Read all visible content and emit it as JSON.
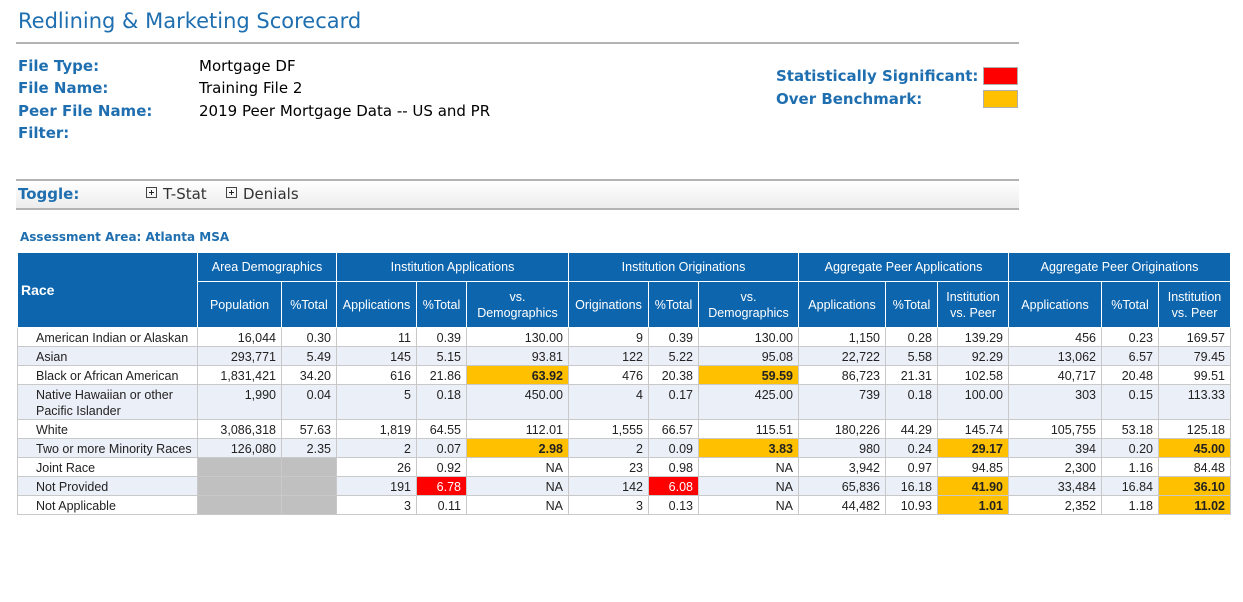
{
  "title": "Redlining & Marketing Scorecard",
  "meta": [
    {
      "label": "File Type:",
      "value": "Mortgage DF"
    },
    {
      "label": "File Name:",
      "value": "Training File 2"
    },
    {
      "label": "Peer File Name:",
      "value": "2019 Peer Mortgage Data -- US and PR"
    },
    {
      "label": "Filter:",
      "value": ""
    }
  ],
  "legend": [
    {
      "label": "Statistically Significant:",
      "color": "#ff0000"
    },
    {
      "label": "Over Benchmark:",
      "color": "#ffc000"
    }
  ],
  "toggle": {
    "label": "Toggle:",
    "items": [
      "T-Stat",
      "Denials"
    ]
  },
  "assessment_area": "Assessment Area: Atlanta MSA",
  "table": {
    "race_header": "Race",
    "groups": [
      "Area Demographics",
      "Institution Applications",
      "Institution Originations",
      "Aggregate Peer Applications",
      "Aggregate Peer Originations"
    ],
    "columns": [
      "Population",
      "%Total",
      "Applications",
      "%Total",
      "vs. Demographics",
      "Originations",
      "%Total",
      "vs. Demographics",
      "Applications",
      "%Total",
      "Institution vs. Peer",
      "Applications",
      "%Total",
      "Institution vs. Peer"
    ],
    "rows": [
      {
        "race": "American Indian or Alaskan",
        "cells": [
          "16,044",
          "0.30",
          "11",
          "0.39",
          "130.00",
          "9",
          "0.39",
          "130.00",
          "1,150",
          "0.28",
          "139.29",
          "456",
          "0.23",
          "169.57"
        ],
        "flags": {}
      },
      {
        "race": "Asian",
        "cells": [
          "293,771",
          "5.49",
          "145",
          "5.15",
          "93.81",
          "122",
          "5.22",
          "95.08",
          "22,722",
          "5.58",
          "92.29",
          "13,062",
          "6.57",
          "79.45"
        ],
        "flags": {}
      },
      {
        "race": "Black or African American",
        "cells": [
          "1,831,421",
          "34.20",
          "616",
          "21.86",
          "63.92",
          "476",
          "20.38",
          "59.59",
          "86,723",
          "21.31",
          "102.58",
          "40,717",
          "20.48",
          "99.51"
        ],
        "flags": {
          "4": "orange",
          "7": "orange"
        }
      },
      {
        "race": "Native Hawaiian or other Pacific Islander",
        "cells": [
          "1,990",
          "0.04",
          "5",
          "0.18",
          "450.00",
          "4",
          "0.17",
          "425.00",
          "739",
          "0.18",
          "100.00",
          "303",
          "0.15",
          "113.33"
        ],
        "flags": {}
      },
      {
        "race": "White",
        "cells": [
          "3,086,318",
          "57.63",
          "1,819",
          "64.55",
          "112.01",
          "1,555",
          "66.57",
          "115.51",
          "180,226",
          "44.29",
          "145.74",
          "105,755",
          "53.18",
          "125.18"
        ],
        "flags": {}
      },
      {
        "race": "Two or more Minority Races",
        "cells": [
          "126,080",
          "2.35",
          "2",
          "0.07",
          "2.98",
          "2",
          "0.09",
          "3.83",
          "980",
          "0.24",
          "29.17",
          "394",
          "0.20",
          "45.00"
        ],
        "flags": {
          "4": "orange",
          "7": "orange",
          "10": "orange",
          "13": "orange"
        }
      },
      {
        "race": "Joint Race",
        "cells": [
          "",
          "",
          "26",
          "0.92",
          "NA",
          "23",
          "0.98",
          "NA",
          "3,942",
          "0.97",
          "94.85",
          "2,300",
          "1.16",
          "84.48"
        ],
        "flags": {
          "0": "gray",
          "1": "gray"
        }
      },
      {
        "race": "Not Provided",
        "cells": [
          "",
          "",
          "191",
          "6.78",
          "NA",
          "142",
          "6.08",
          "NA",
          "65,836",
          "16.18",
          "41.90",
          "33,484",
          "16.84",
          "36.10"
        ],
        "flags": {
          "0": "gray",
          "1": "gray",
          "3": "red",
          "6": "red",
          "10": "orange",
          "13": "orange"
        }
      },
      {
        "race": "Not Applicable",
        "cells": [
          "",
          "",
          "3",
          "0.11",
          "NA",
          "3",
          "0.13",
          "NA",
          "44,482",
          "10.93",
          "1.01",
          "2,352",
          "1.18",
          "11.02"
        ],
        "flags": {
          "0": "gray",
          "1": "gray",
          "10": "orange",
          "13": "orange"
        }
      }
    ]
  }
}
